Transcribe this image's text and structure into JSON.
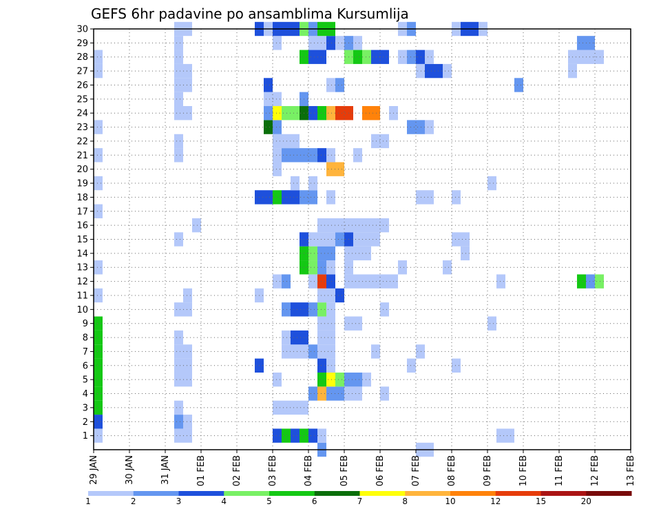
{
  "chart_data": {
    "type": "heatmap",
    "title": "GEFS 6hr padavine po ansamblima Kursumlija",
    "x_ticks": [
      "29 JAN",
      "30 JAN",
      "31 JAN",
      "01 FEB",
      "02 FEB",
      "03 FEB",
      "04 FEB",
      "05 FEB",
      "06 FEB",
      "07 FEB",
      "08 FEB",
      "09 FEB",
      "10 FEB",
      "11 FEB",
      "12 FEB",
      "13 FEB"
    ],
    "y_ticks": [
      "1",
      "2",
      "3",
      "4",
      "5",
      "6",
      "7",
      "8",
      "9",
      "10",
      "11",
      "12",
      "13",
      "14",
      "15",
      "16",
      "17",
      "18",
      "19",
      "20",
      "21",
      "22",
      "23",
      "24",
      "25",
      "26",
      "27",
      "28",
      "29",
      "30"
    ],
    "x_range_steps": [
      0,
      60
    ],
    "y_range": [
      0,
      30
    ],
    "grid": true,
    "colorbar_labels": [
      "1",
      "2",
      "3",
      "4",
      "5",
      "6",
      "7",
      "8",
      "10",
      "12",
      "15",
      "20"
    ],
    "colors": [
      "#b4c8fa",
      "#6496f0",
      "#1e50dc",
      "#78f064",
      "#14c814",
      "#0a6e0a",
      "#ffff0a",
      "#ffb43c",
      "#ff820a",
      "#e63c0a",
      "#aa1414",
      "#780a0a"
    ],
    "cells": [
      [
        0,
        1,
        1
      ],
      [
        0,
        2,
        3
      ],
      [
        0,
        3,
        5
      ],
      [
        0,
        4,
        5
      ],
      [
        0,
        5,
        5
      ],
      [
        0,
        6,
        5
      ],
      [
        0,
        7,
        5
      ],
      [
        0,
        8,
        5
      ],
      [
        0,
        9,
        5
      ],
      [
        0,
        11,
        1
      ],
      [
        0,
        13,
        1
      ],
      [
        0,
        17,
        1
      ],
      [
        0,
        19,
        1
      ],
      [
        0,
        21,
        1
      ],
      [
        0,
        23,
        1
      ],
      [
        0,
        27,
        1
      ],
      [
        0,
        28,
        1
      ],
      [
        9,
        1,
        1
      ],
      [
        9,
        2,
        2
      ],
      [
        9,
        3,
        1
      ],
      [
        9,
        5,
        1
      ],
      [
        9,
        6,
        1
      ],
      [
        9,
        7,
        1
      ],
      [
        9,
        8,
        1
      ],
      [
        9,
        10,
        1
      ],
      [
        9,
        15,
        1
      ],
      [
        9,
        21,
        1
      ],
      [
        9,
        22,
        1
      ],
      [
        9,
        24,
        1
      ],
      [
        9,
        25,
        1
      ],
      [
        9,
        26,
        1
      ],
      [
        9,
        27,
        1
      ],
      [
        9,
        28,
        1
      ],
      [
        9,
        29,
        1
      ],
      [
        9,
        30,
        1
      ],
      [
        10,
        1,
        1
      ],
      [
        10,
        2,
        1
      ],
      [
        10,
        5,
        1
      ],
      [
        10,
        6,
        1
      ],
      [
        10,
        7,
        1
      ],
      [
        10,
        10,
        1
      ],
      [
        10,
        11,
        1
      ],
      [
        10,
        24,
        1
      ],
      [
        10,
        26,
        1
      ],
      [
        10,
        27,
        1
      ],
      [
        10,
        30,
        1
      ],
      [
        11,
        16,
        1
      ],
      [
        18,
        6,
        3
      ],
      [
        18,
        11,
        1
      ],
      [
        18,
        18,
        3
      ],
      [
        18,
        30,
        3
      ],
      [
        19,
        18,
        3
      ],
      [
        19,
        23,
        6
      ],
      [
        19,
        24,
        2
      ],
      [
        19,
        25,
        1
      ],
      [
        19,
        26,
        3
      ],
      [
        19,
        30,
        1
      ],
      [
        20,
        1,
        3
      ],
      [
        20,
        3,
        1
      ],
      [
        20,
        5,
        1
      ],
      [
        20,
        12,
        1
      ],
      [
        20,
        18,
        5
      ],
      [
        20,
        20,
        1
      ],
      [
        20,
        21,
        1
      ],
      [
        20,
        22,
        1
      ],
      [
        20,
        23,
        2
      ],
      [
        20,
        24,
        7
      ],
      [
        20,
        25,
        1
      ],
      [
        20,
        29,
        1
      ],
      [
        20,
        30,
        3
      ],
      [
        21,
        1,
        5
      ],
      [
        21,
        3,
        1
      ],
      [
        21,
        7,
        1
      ],
      [
        21,
        8,
        1
      ],
      [
        21,
        10,
        2
      ],
      [
        21,
        12,
        2
      ],
      [
        21,
        18,
        3
      ],
      [
        21,
        21,
        2
      ],
      [
        21,
        22,
        1
      ],
      [
        21,
        24,
        4
      ],
      [
        21,
        30,
        3
      ],
      [
        22,
        1,
        3
      ],
      [
        22,
        3,
        1
      ],
      [
        22,
        7,
        1
      ],
      [
        22,
        8,
        3
      ],
      [
        22,
        10,
        3
      ],
      [
        22,
        18,
        3
      ],
      [
        22,
        19,
        1
      ],
      [
        22,
        21,
        2
      ],
      [
        22,
        22,
        1
      ],
      [
        22,
        24,
        4
      ],
      [
        22,
        30,
        3
      ],
      [
        23,
        1,
        5
      ],
      [
        23,
        3,
        1
      ],
      [
        23,
        7,
        1
      ],
      [
        23,
        8,
        3
      ],
      [
        23,
        10,
        3
      ],
      [
        23,
        13,
        5
      ],
      [
        23,
        14,
        5
      ],
      [
        23,
        15,
        3
      ],
      [
        23,
        18,
        2
      ],
      [
        23,
        21,
        2
      ],
      [
        23,
        24,
        6
      ],
      [
        23,
        25,
        2
      ],
      [
        23,
        28,
        5
      ],
      [
        23,
        30,
        4
      ],
      [
        24,
        1,
        3
      ],
      [
        24,
        4,
        2
      ],
      [
        24,
        7,
        2
      ],
      [
        24,
        10,
        2
      ],
      [
        24,
        12,
        1
      ],
      [
        24,
        13,
        4
      ],
      [
        24,
        14,
        4
      ],
      [
        24,
        15,
        1
      ],
      [
        24,
        18,
        2
      ],
      [
        24,
        19,
        1
      ],
      [
        24,
        21,
        2
      ],
      [
        24,
        24,
        3
      ],
      [
        24,
        28,
        3
      ],
      [
        24,
        29,
        1
      ],
      [
        24,
        30,
        2
      ],
      [
        25,
        0,
        2
      ],
      [
        25,
        1,
        1
      ],
      [
        25,
        4,
        8
      ],
      [
        25,
        5,
        5
      ],
      [
        25,
        6,
        3
      ],
      [
        25,
        7,
        1
      ],
      [
        25,
        8,
        1
      ],
      [
        25,
        9,
        1
      ],
      [
        25,
        10,
        4
      ],
      [
        25,
        11,
        1
      ],
      [
        25,
        12,
        10
      ],
      [
        25,
        13,
        2
      ],
      [
        25,
        14,
        2
      ],
      [
        25,
        15,
        1
      ],
      [
        25,
        16,
        1
      ],
      [
        25,
        21,
        3
      ],
      [
        25,
        24,
        5
      ],
      [
        25,
        28,
        3
      ],
      [
        25,
        29,
        1
      ],
      [
        25,
        30,
        5
      ],
      [
        26,
        4,
        2
      ],
      [
        26,
        5,
        7
      ],
      [
        26,
        6,
        1
      ],
      [
        26,
        7,
        1
      ],
      [
        26,
        8,
        1
      ],
      [
        26,
        9,
        1
      ],
      [
        26,
        10,
        1
      ],
      [
        26,
        11,
        1
      ],
      [
        26,
        12,
        3
      ],
      [
        26,
        13,
        1
      ],
      [
        26,
        14,
        2
      ],
      [
        26,
        15,
        1
      ],
      [
        26,
        16,
        1
      ],
      [
        26,
        18,
        1
      ],
      [
        26,
        20,
        8
      ],
      [
        26,
        21,
        1
      ],
      [
        26,
        24,
        8
      ],
      [
        26,
        26,
        1
      ],
      [
        26,
        29,
        3
      ],
      [
        26,
        30,
        5
      ],
      [
        27,
        4,
        2
      ],
      [
        27,
        5,
        4
      ],
      [
        27,
        11,
        3
      ],
      [
        27,
        15,
        2
      ],
      [
        27,
        16,
        1
      ],
      [
        27,
        20,
        8
      ],
      [
        27,
        24,
        10
      ],
      [
        27,
        26,
        2
      ],
      [
        27,
        29,
        1
      ],
      [
        28,
        4,
        1
      ],
      [
        28,
        5,
        2
      ],
      [
        28,
        9,
        1
      ],
      [
        28,
        12,
        1
      ],
      [
        28,
        13,
        1
      ],
      [
        28,
        14,
        1
      ],
      [
        28,
        15,
        3
      ],
      [
        28,
        16,
        1
      ],
      [
        28,
        24,
        10
      ],
      [
        28,
        28,
        4
      ],
      [
        28,
        29,
        2
      ],
      [
        29,
        4,
        1
      ],
      [
        29,
        5,
        2
      ],
      [
        29,
        9,
        1
      ],
      [
        29,
        12,
        1
      ],
      [
        29,
        14,
        1
      ],
      [
        29,
        15,
        1
      ],
      [
        29,
        16,
        1
      ],
      [
        29,
        21,
        1
      ],
      [
        29,
        28,
        5
      ],
      [
        29,
        29,
        1
      ],
      [
        30,
        5,
        1
      ],
      [
        30,
        12,
        1
      ],
      [
        30,
        14,
        1
      ],
      [
        30,
        15,
        1
      ],
      [
        30,
        16,
        1
      ],
      [
        30,
        24,
        9
      ],
      [
        30,
        28,
        4
      ],
      [
        31,
        7,
        1
      ],
      [
        31,
        12,
        1
      ],
      [
        31,
        15,
        1
      ],
      [
        31,
        16,
        1
      ],
      [
        31,
        22,
        1
      ],
      [
        31,
        24,
        9
      ],
      [
        31,
        28,
        3
      ],
      [
        32,
        4,
        1
      ],
      [
        32,
        10,
        1
      ],
      [
        32,
        12,
        1
      ],
      [
        32,
        16,
        1
      ],
      [
        32,
        22,
        1
      ],
      [
        32,
        28,
        3
      ],
      [
        33,
        12,
        1
      ],
      [
        33,
        24,
        1
      ],
      [
        34,
        13,
        1
      ],
      [
        34,
        28,
        1
      ],
      [
        34,
        30,
        1
      ],
      [
        35,
        6,
        1
      ],
      [
        35,
        23,
        2
      ],
      [
        35,
        28,
        2
      ],
      [
        35,
        30,
        2
      ],
      [
        36,
        0,
        1
      ],
      [
        36,
        7,
        1
      ],
      [
        36,
        18,
        1
      ],
      [
        36,
        23,
        2
      ],
      [
        36,
        27,
        1
      ],
      [
        36,
        28,
        3
      ],
      [
        37,
        0,
        1
      ],
      [
        37,
        18,
        1
      ],
      [
        37,
        23,
        1
      ],
      [
        37,
        27,
        3
      ],
      [
        37,
        28,
        1
      ],
      [
        38,
        27,
        3
      ],
      [
        39,
        13,
        1
      ],
      [
        39,
        27,
        1
      ],
      [
        40,
        6,
        1
      ],
      [
        40,
        15,
        1
      ],
      [
        40,
        18,
        1
      ],
      [
        40,
        30,
        1
      ],
      [
        41,
        14,
        1
      ],
      [
        41,
        15,
        1
      ],
      [
        41,
        30,
        3
      ],
      [
        42,
        30,
        3
      ],
      [
        43,
        30,
        1
      ],
      [
        44,
        9,
        1
      ],
      [
        44,
        19,
        1
      ],
      [
        45,
        1,
        1
      ],
      [
        45,
        12,
        1
      ],
      [
        46,
        1,
        1
      ],
      [
        47,
        26,
        2
      ],
      [
        53,
        27,
        1
      ],
      [
        53,
        28,
        1
      ],
      [
        54,
        12,
        5
      ],
      [
        54,
        28,
        1
      ],
      [
        54,
        29,
        2
      ],
      [
        55,
        12,
        2
      ],
      [
        55,
        28,
        1
      ],
      [
        55,
        29,
        2
      ],
      [
        56,
        12,
        4
      ],
      [
        56,
        28,
        1
      ]
    ]
  }
}
